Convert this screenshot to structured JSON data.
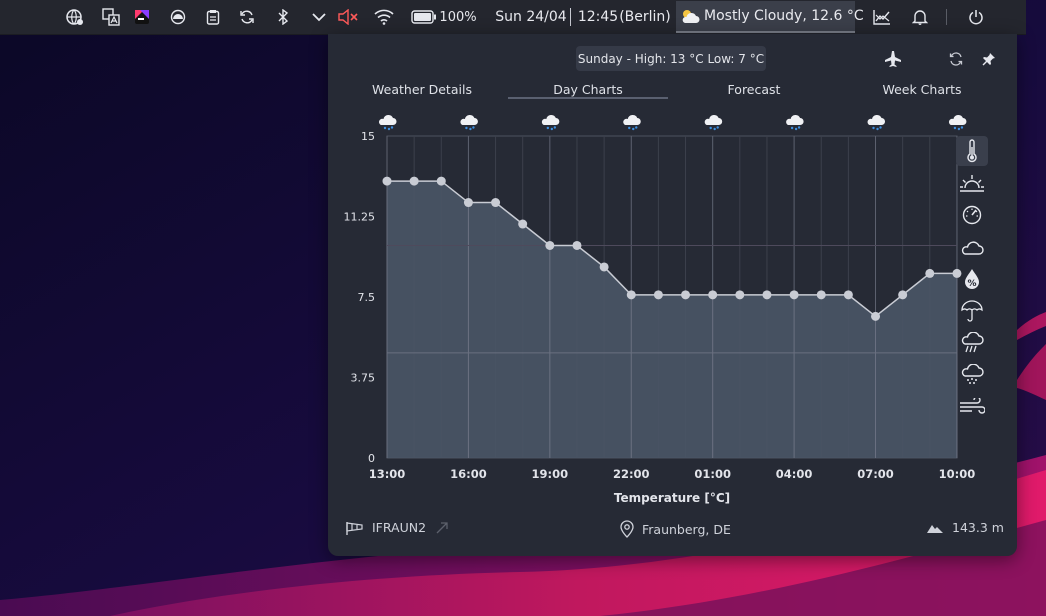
{
  "panel": {
    "battery": "100%",
    "date": "Sun 24/04",
    "time": "12:45",
    "timezone": "(Berlin)",
    "weather": "Mostly Cloudy, 12.6 °C",
    "icons": [
      "network-globe-icon",
      "translate-icon",
      "app-icon",
      "caffeine-icon",
      "clipboard-icon",
      "sync-icon",
      "bluetooth-icon",
      "chevron-down-icon",
      "volume-muted-icon",
      "wifi-icon",
      "battery-icon",
      "chart-icon",
      "bell-icon",
      "power-icon"
    ]
  },
  "popup": {
    "summary": "Sunday - High: 13 °C Low: 7 °C",
    "tabs": [
      "Weather Details",
      "Day Charts",
      "Forecast",
      "Week Charts"
    ],
    "active_tab": "Day Charts",
    "footer": {
      "station": "IFRAUN2",
      "location": "Fraunberg, DE",
      "elevation": "143.3 m"
    },
    "side_metrics": [
      "thermometer-icon",
      "sunrise-icon",
      "pressure-gauge-icon",
      "cloud-icon",
      "humidity-icon",
      "umbrella-icon",
      "rain-icon",
      "snow-icon",
      "wind-icon"
    ],
    "header_icons": [
      "airplane-icon",
      "refresh-icon",
      "pin-icon"
    ],
    "accent": "#4a5566"
  },
  "chart_data": {
    "type": "area",
    "xlabel": "Temperature [°C]",
    "x_ticks": [
      "13:00",
      "16:00",
      "19:00",
      "22:00",
      "01:00",
      "04:00",
      "07:00",
      "10:00"
    ],
    "y_ticks": [
      "0",
      "3.75",
      "7.5",
      "11.25",
      "15"
    ],
    "ylim": [
      0,
      15
    ],
    "x": [
      "13:00",
      "14:00",
      "15:00",
      "16:00",
      "17:00",
      "18:00",
      "19:00",
      "20:00",
      "21:00",
      "22:00",
      "23:00",
      "00:00",
      "01:00",
      "02:00",
      "03:00",
      "04:00",
      "05:00",
      "06:00",
      "07:00",
      "08:00",
      "09:00",
      "10:00"
    ],
    "values": [
      12.9,
      12.9,
      12.9,
      11.9,
      11.9,
      10.9,
      9.9,
      9.9,
      8.9,
      7.6,
      7.6,
      7.6,
      7.6,
      7.6,
      7.6,
      7.6,
      7.6,
      7.6,
      6.6,
      7.6,
      8.6,
      8.6
    ],
    "weather_icons": [
      "snow-cloud-icon",
      "snow-cloud-icon",
      "snow-cloud-icon",
      "snow-cloud-icon",
      "snow-cloud-icon",
      "snow-cloud-icon",
      "snow-cloud-icon",
      "snow-cloud-icon"
    ],
    "grid": true
  }
}
